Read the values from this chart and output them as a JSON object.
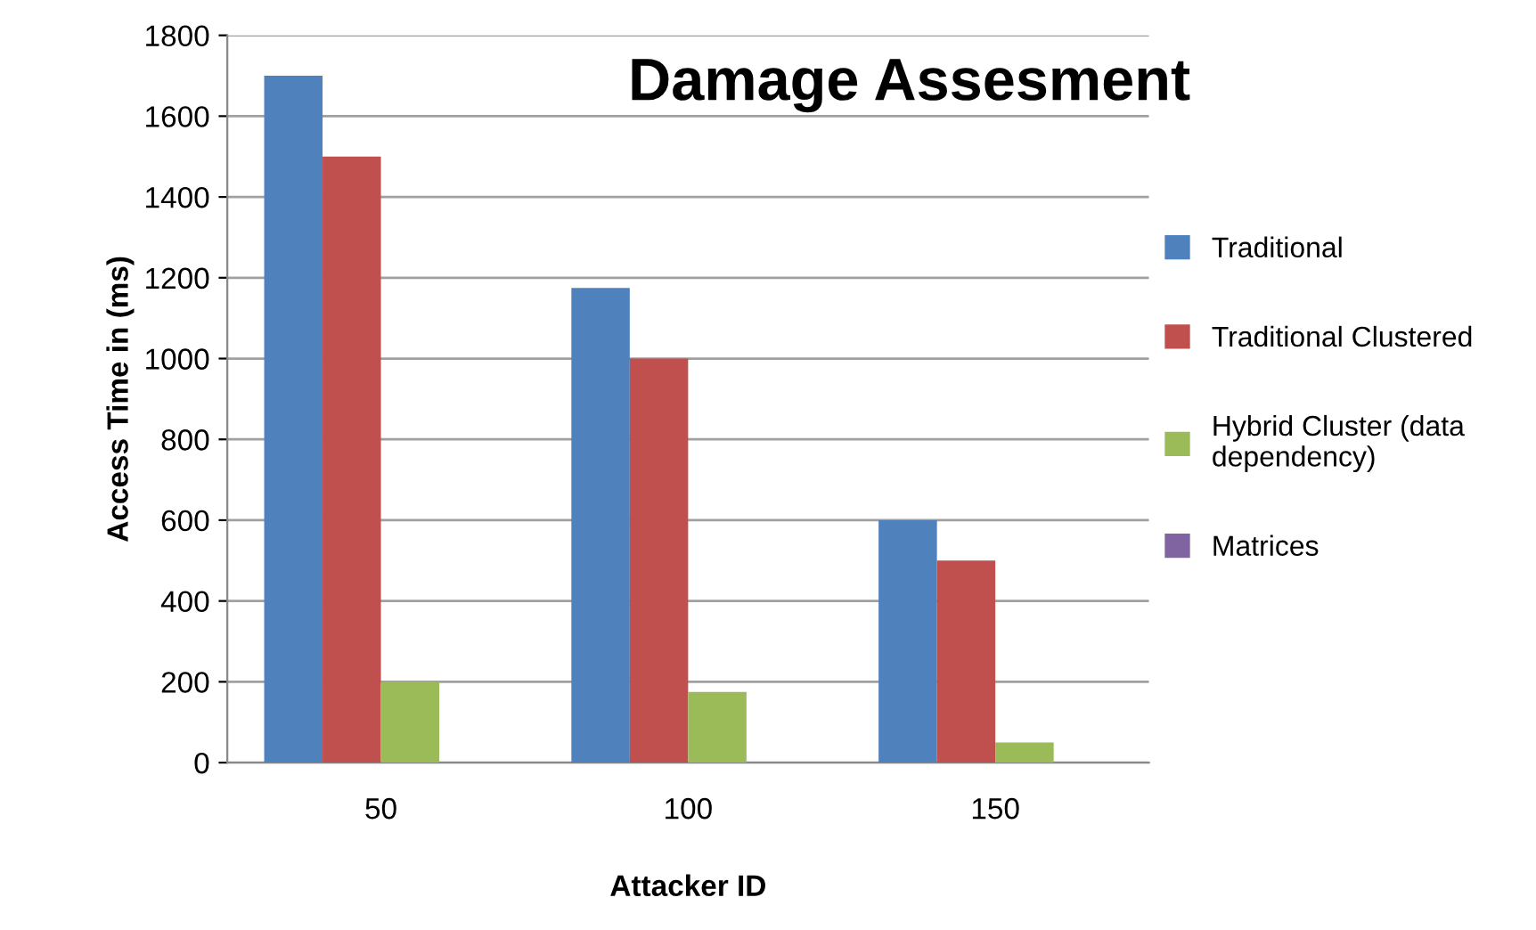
{
  "chart_data": {
    "type": "bar",
    "title": "Damage Assesment",
    "xlabel": "Attacker ID",
    "ylabel": "Access Time in (ms)",
    "categories": [
      "50",
      "100",
      "150"
    ],
    "series": [
      {
        "name": "Traditional",
        "color": "#4f81bd",
        "values": [
          1700,
          1175,
          600
        ]
      },
      {
        "name": "Traditional Clustered",
        "color": "#c0504d",
        "values": [
          1500,
          1000,
          500
        ]
      },
      {
        "name": "Hybrid Cluster (data\ndependency)",
        "color": "#9bbb59",
        "values": [
          200,
          175,
          50
        ]
      },
      {
        "name": "Matrices",
        "color": "#8064a2",
        "values": [
          null,
          null,
          null
        ]
      }
    ],
    "ylim": [
      0,
      1800
    ],
    "yticks": [
      0,
      200,
      400,
      600,
      800,
      1000,
      1200,
      1400,
      1600,
      1800
    ],
    "grid": "y",
    "legend": "right"
  }
}
